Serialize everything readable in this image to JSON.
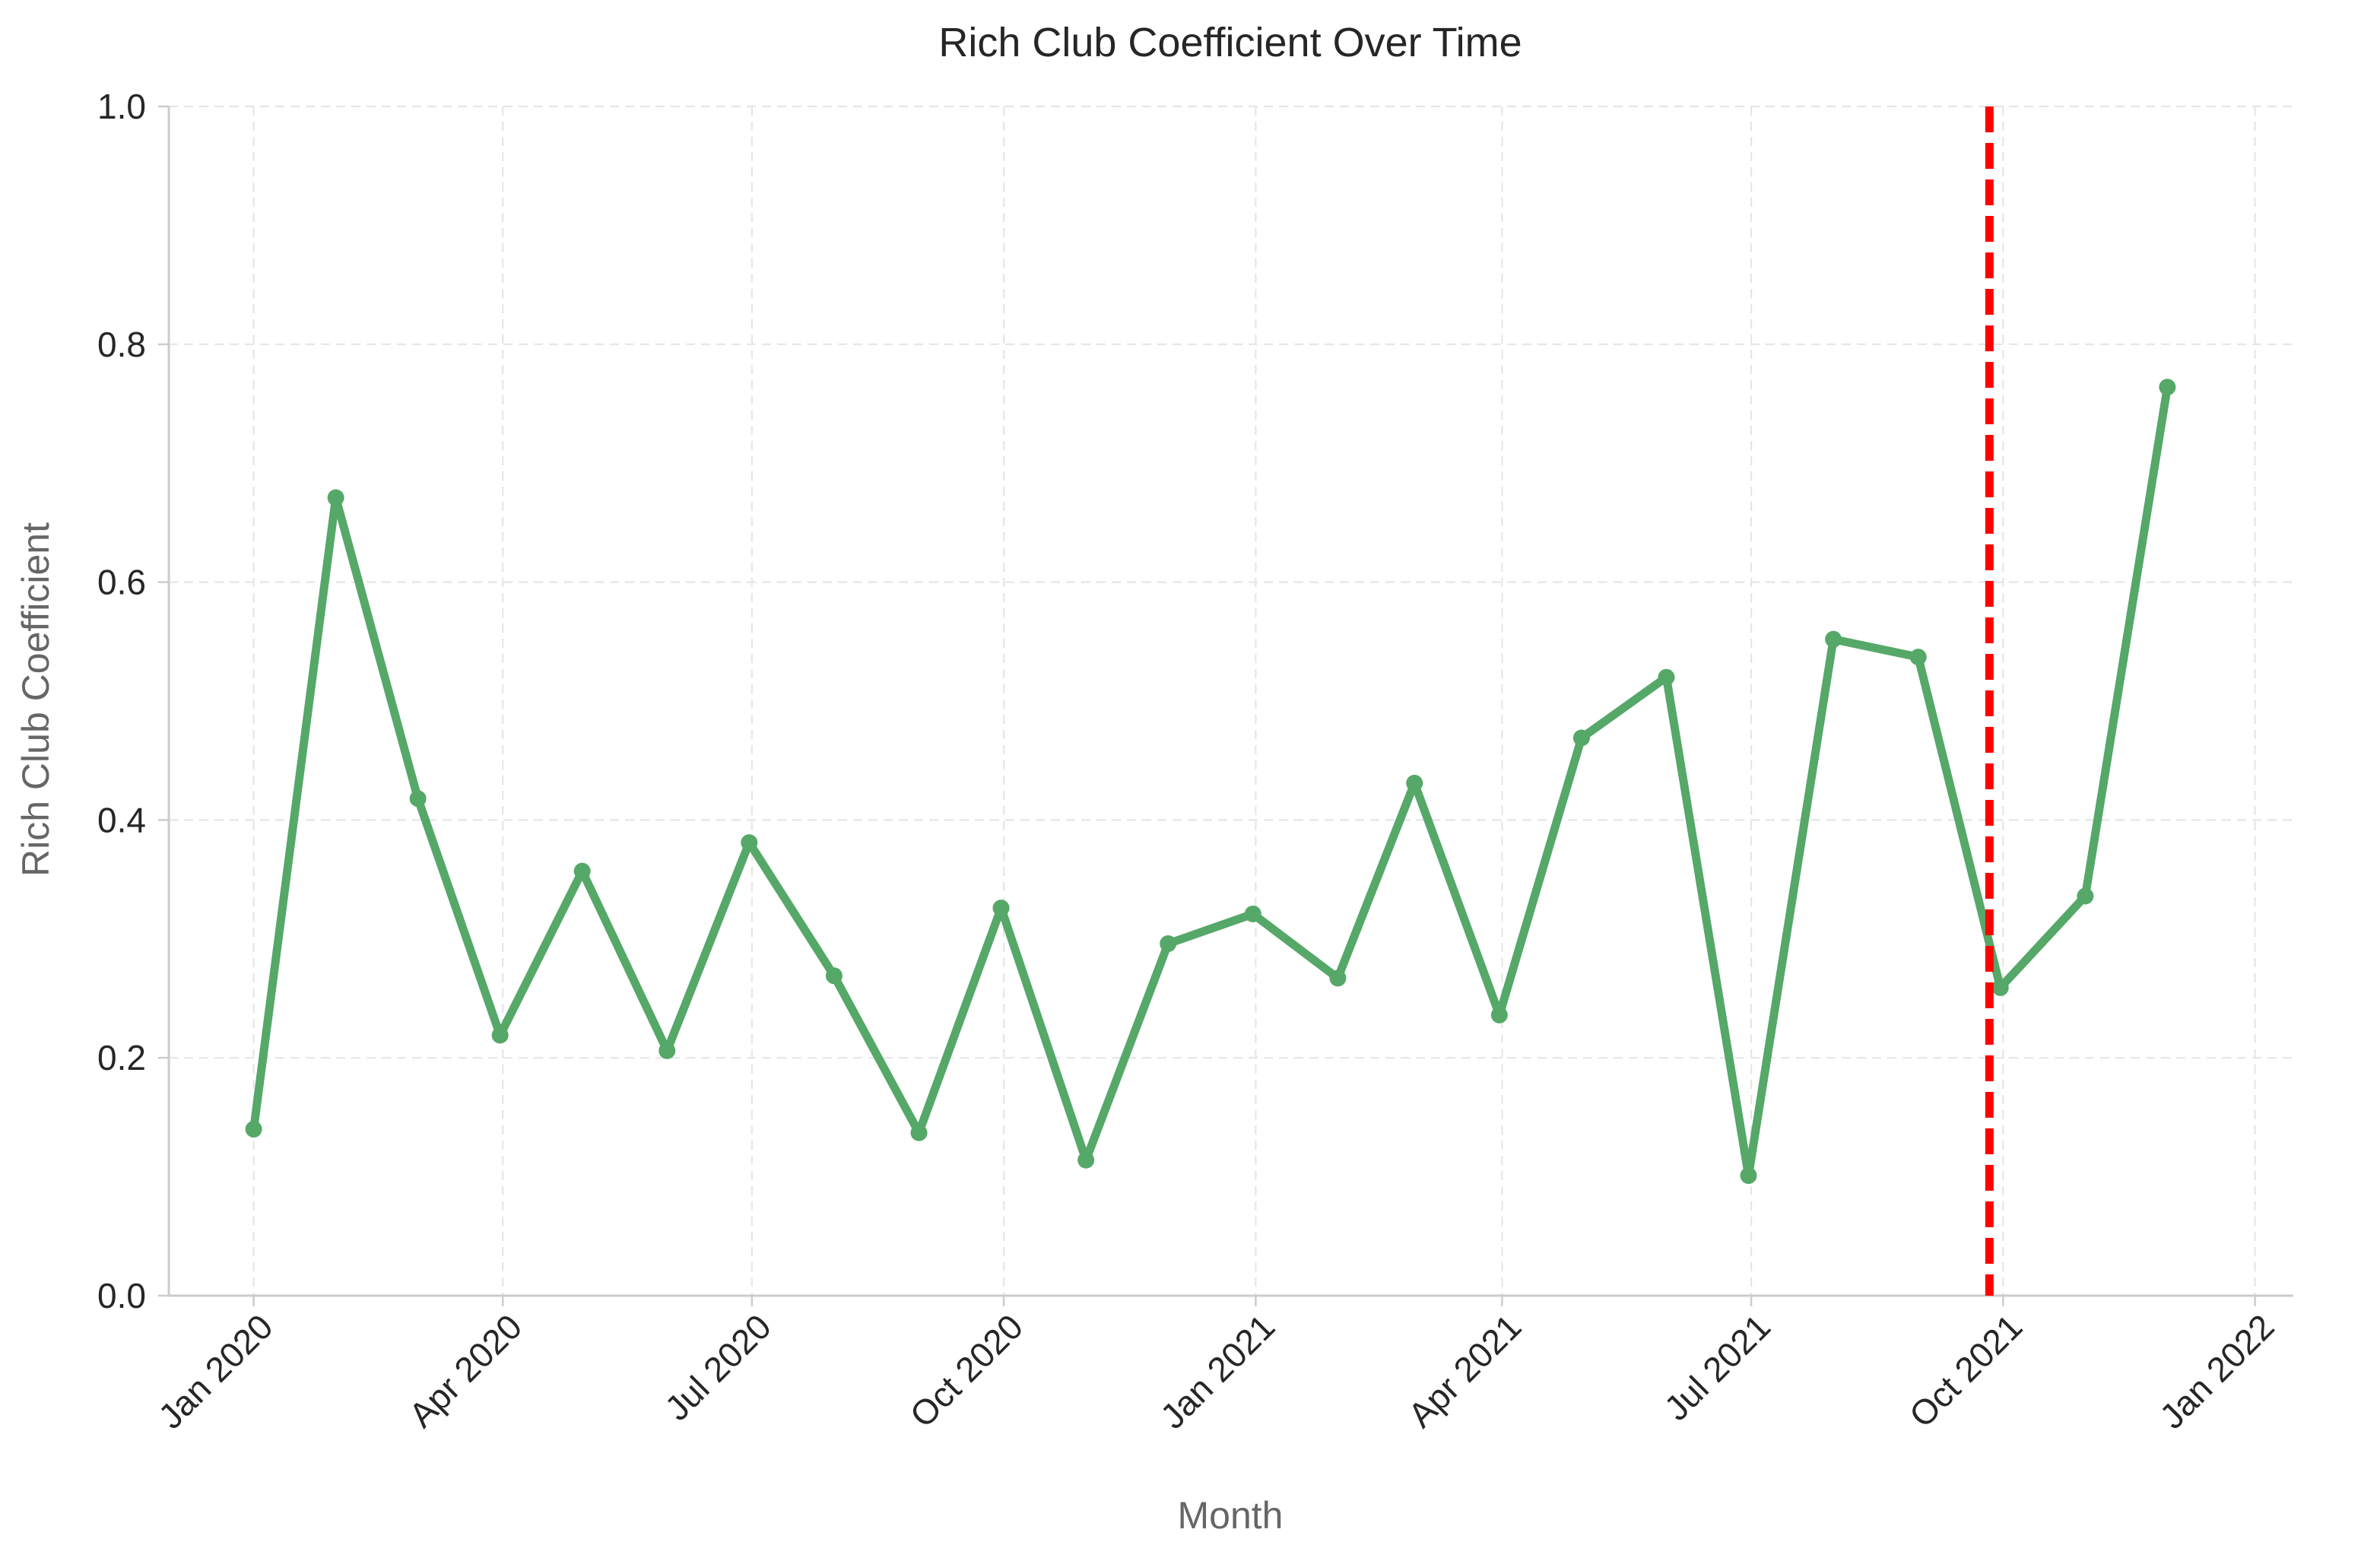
{
  "chart_data": {
    "type": "line",
    "title": "Rich Club Coefficient Over Time",
    "xlabel": "Month",
    "ylabel": "Rich Club Coefficient",
    "xlim": [
      "2019-12-01",
      "2022-01-15"
    ],
    "ylim": [
      0,
      1.0
    ],
    "grid": true,
    "x_ticks": [
      {
        "date": "2020-01-01",
        "label": "Jan 2020"
      },
      {
        "date": "2020-04-01",
        "label": "Apr 2020"
      },
      {
        "date": "2020-07-01",
        "label": "Jul 2020"
      },
      {
        "date": "2020-10-01",
        "label": "Oct 2020"
      },
      {
        "date": "2021-01-01",
        "label": "Jan 2021"
      },
      {
        "date": "2021-04-01",
        "label": "Apr 2021"
      },
      {
        "date": "2021-07-01",
        "label": "Jul 2021"
      },
      {
        "date": "2021-10-01",
        "label": "Oct 2021"
      },
      {
        "date": "2022-01-01",
        "label": "Jan 2022"
      }
    ],
    "y_ticks": [
      {
        "value": 0.0,
        "label": "0.0"
      },
      {
        "value": 0.2,
        "label": "0.2"
      },
      {
        "value": 0.4,
        "label": "0.4"
      },
      {
        "value": 0.6,
        "label": "0.6"
      },
      {
        "value": 0.8,
        "label": "0.8"
      },
      {
        "value": 1.0,
        "label": "1.0"
      }
    ],
    "series": [
      {
        "color": "#55a868",
        "x": [
          "2020-01-01",
          "2020-01-31",
          "2020-03-01",
          "2020-03-31",
          "2020-04-30",
          "2020-05-31",
          "2020-06-30",
          "2020-07-31",
          "2020-08-31",
          "2020-09-30",
          "2020-10-31",
          "2020-11-30",
          "2020-12-31",
          "2021-01-31",
          "2021-02-28",
          "2021-03-31",
          "2021-04-30",
          "2021-05-31",
          "2021-06-30",
          "2021-07-31",
          "2021-08-31",
          "2021-09-30",
          "2021-10-31",
          "2021-11-30"
        ],
        "values": [
          0.14,
          0.671,
          0.418,
          0.219,
          0.357,
          0.206,
          0.381,
          0.269,
          0.137,
          0.326,
          0.114,
          0.296,
          0.321,
          0.267,
          0.431,
          0.236,
          0.469,
          0.52,
          0.101,
          0.552,
          0.537,
          0.259,
          0.336,
          0.764
        ]
      }
    ],
    "reference_lines": [
      {
        "orientation": "vertical",
        "date": "2021-09-26",
        "color": "#ff0000",
        "style": "dashed"
      }
    ]
  }
}
